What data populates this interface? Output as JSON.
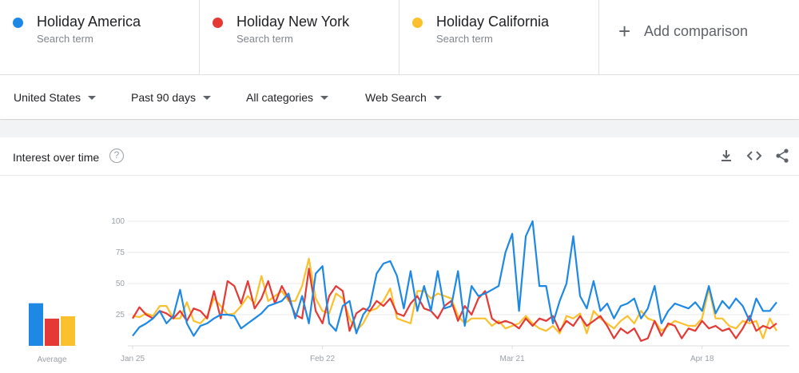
{
  "terms": [
    {
      "name": "Holiday America",
      "sub": "Search term",
      "color": "#1e88e5"
    },
    {
      "name": "Holiday New York",
      "sub": "Search term",
      "color": "#e53935"
    },
    {
      "name": "Holiday California",
      "sub": "Search term",
      "color": "#fbc02d"
    }
  ],
  "add_comparison": "Add comparison",
  "filters": {
    "region": "United States",
    "time": "Past 90 days",
    "category": "All categories",
    "search_type": "Web Search"
  },
  "card": {
    "title": "Interest over time",
    "help_glyph": "?"
  },
  "icons": [
    "download-icon",
    "embed-icon",
    "share-icon",
    "help-icon",
    "plus-icon"
  ],
  "chart_data": {
    "type": "line",
    "ylim": [
      0,
      100
    ],
    "yticks": [
      "100",
      "75",
      "50",
      "25"
    ],
    "xtick_labels": [
      "Jan 25",
      "Feb 22",
      "Mar 21",
      "Apr 18"
    ],
    "xtick_index": [
      0,
      28,
      56,
      84
    ],
    "average_label": "Average",
    "averages": [
      36,
      23,
      25
    ],
    "series": [
      {
        "name": "Holiday America",
        "color": "#1e88e5",
        "values": [
          8,
          15,
          18,
          22,
          28,
          18,
          24,
          45,
          18,
          8,
          16,
          18,
          22,
          25,
          25,
          24,
          14,
          18,
          22,
          26,
          32,
          34,
          36,
          42,
          22,
          40,
          18,
          58,
          64,
          18,
          12,
          32,
          36,
          10,
          25,
          32,
          58,
          66,
          68,
          56,
          30,
          60,
          28,
          48,
          28,
          60,
          30,
          32,
          60,
          16,
          48,
          40,
          42,
          45,
          48,
          75,
          90,
          28,
          88,
          100,
          48,
          48,
          18,
          36,
          50,
          88,
          40,
          30,
          52,
          28,
          34,
          22,
          32,
          34,
          38,
          22,
          30,
          48,
          18,
          28,
          34,
          32,
          30,
          35,
          28,
          48,
          26,
          36,
          30,
          38,
          32,
          20,
          38,
          28,
          28,
          35
        ]
      },
      {
        "name": "Holiday New York",
        "color": "#e53935",
        "values": [
          22,
          31,
          25,
          22,
          28,
          26,
          22,
          28,
          20,
          30,
          28,
          22,
          44,
          22,
          52,
          48,
          34,
          52,
          30,
          38,
          52,
          34,
          48,
          38,
          25,
          22,
          62,
          28,
          18,
          40,
          48,
          44,
          12,
          26,
          30,
          28,
          36,
          32,
          38,
          26,
          24,
          34,
          40,
          30,
          28,
          22,
          32,
          36,
          20,
          32,
          25,
          38,
          44,
          22,
          18,
          20,
          18,
          14,
          22,
          16,
          22,
          20,
          24,
          12,
          20,
          16,
          24,
          16,
          20,
          24,
          16,
          6,
          14,
          10,
          14,
          4,
          6,
          20,
          8,
          18,
          16,
          6,
          14,
          12,
          20,
          14,
          16,
          12,
          14,
          6,
          14,
          24,
          12,
          16,
          14,
          18
        ]
      },
      {
        "name": "Holiday California",
        "color": "#fbc02d",
        "values": [
          24,
          23,
          26,
          24,
          32,
          32,
          22,
          22,
          35,
          20,
          18,
          24,
          38,
          32,
          25,
          26,
          32,
          40,
          34,
          56,
          36,
          40,
          44,
          36,
          36,
          48,
          70,
          38,
          28,
          26,
          42,
          38,
          22,
          12,
          18,
          28,
          30,
          36,
          46,
          22,
          20,
          18,
          44,
          44,
          38,
          42,
          40,
          38,
          24,
          18,
          22,
          22,
          22,
          16,
          20,
          14,
          16,
          18,
          24,
          18,
          14,
          12,
          16,
          10,
          24,
          22,
          26,
          10,
          28,
          22,
          18,
          14,
          20,
          24,
          18,
          28,
          22,
          20,
          12,
          16,
          20,
          18,
          16,
          16,
          22,
          46,
          22,
          22,
          16,
          14,
          20,
          18,
          20,
          6,
          22,
          12
        ]
      }
    ]
  }
}
